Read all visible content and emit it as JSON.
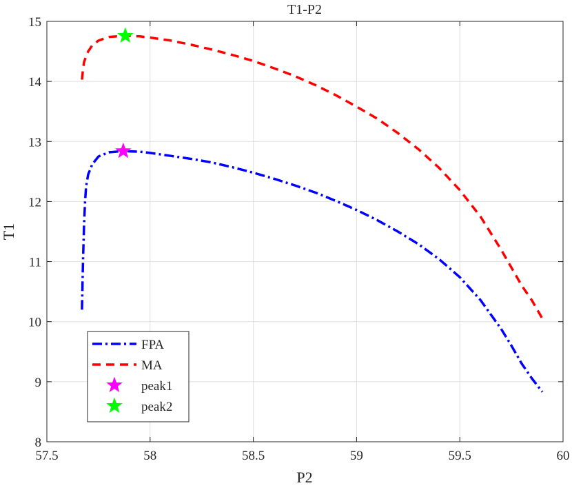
{
  "chart_data": {
    "type": "line",
    "title": "T1-P2",
    "xlabel": "P2",
    "ylabel": "T1",
    "xlim": [
      57.5,
      60
    ],
    "ylim": [
      8,
      15
    ],
    "xticks": [
      57.5,
      58,
      58.5,
      59,
      59.5,
      60
    ],
    "yticks": [
      8,
      9,
      10,
      11,
      12,
      13,
      14,
      15
    ],
    "xtick_labels": [
      "57.5",
      "58",
      "58.5",
      "59",
      "59.5",
      "60"
    ],
    "ytick_labels": [
      "8",
      "9",
      "10",
      "11",
      "12",
      "13",
      "14",
      "15"
    ],
    "grid": true,
    "legend_position": "bottom-left",
    "series": [
      {
        "name": "FPA",
        "color": "#0000ff",
        "style": "dash-dot",
        "x": [
          57.67,
          57.675,
          57.68,
          57.685,
          57.69,
          57.7,
          57.72,
          57.75,
          57.8,
          57.87,
          57.95,
          58.0,
          58.1,
          58.2,
          58.3,
          58.4,
          58.5,
          58.6,
          58.7,
          58.8,
          58.9,
          59.0,
          59.1,
          59.2,
          59.3,
          59.4,
          59.5,
          59.6,
          59.7,
          59.75,
          59.8,
          59.85,
          59.9
        ],
        "y": [
          10.2,
          11.0,
          11.6,
          12.0,
          12.25,
          12.45,
          12.62,
          12.75,
          12.82,
          12.84,
          12.83,
          12.81,
          12.76,
          12.71,
          12.65,
          12.57,
          12.48,
          12.38,
          12.27,
          12.15,
          12.01,
          11.86,
          11.69,
          11.5,
          11.29,
          11.04,
          10.74,
          10.36,
          9.88,
          9.6,
          9.3,
          9.05,
          8.83
        ]
      },
      {
        "name": "MA",
        "color": "#ff0000",
        "style": "dashed",
        "x": [
          57.67,
          57.675,
          57.68,
          57.69,
          57.7,
          57.72,
          57.75,
          57.8,
          57.88,
          57.95,
          58.0,
          58.1,
          58.2,
          58.3,
          58.4,
          58.5,
          58.6,
          58.7,
          58.8,
          58.9,
          59.0,
          59.1,
          59.2,
          59.3,
          59.4,
          59.5,
          59.6,
          59.7,
          59.75,
          59.8,
          59.85,
          59.9
        ],
        "y": [
          14.03,
          14.2,
          14.32,
          14.42,
          14.5,
          14.6,
          14.68,
          14.74,
          14.76,
          14.75,
          14.73,
          14.68,
          14.61,
          14.53,
          14.44,
          14.34,
          14.22,
          14.09,
          13.94,
          13.77,
          13.58,
          13.38,
          13.14,
          12.87,
          12.56,
          12.19,
          11.75,
          11.2,
          10.9,
          10.6,
          10.35,
          10.05
        ]
      },
      {
        "name": "peak1",
        "color": "#ff00ff",
        "style": "marker-star",
        "x": [
          57.87
        ],
        "y": [
          12.84
        ]
      },
      {
        "name": "peak2",
        "color": "#00ff00",
        "style": "marker-star",
        "x": [
          57.88
        ],
        "y": [
          14.76
        ]
      }
    ]
  }
}
